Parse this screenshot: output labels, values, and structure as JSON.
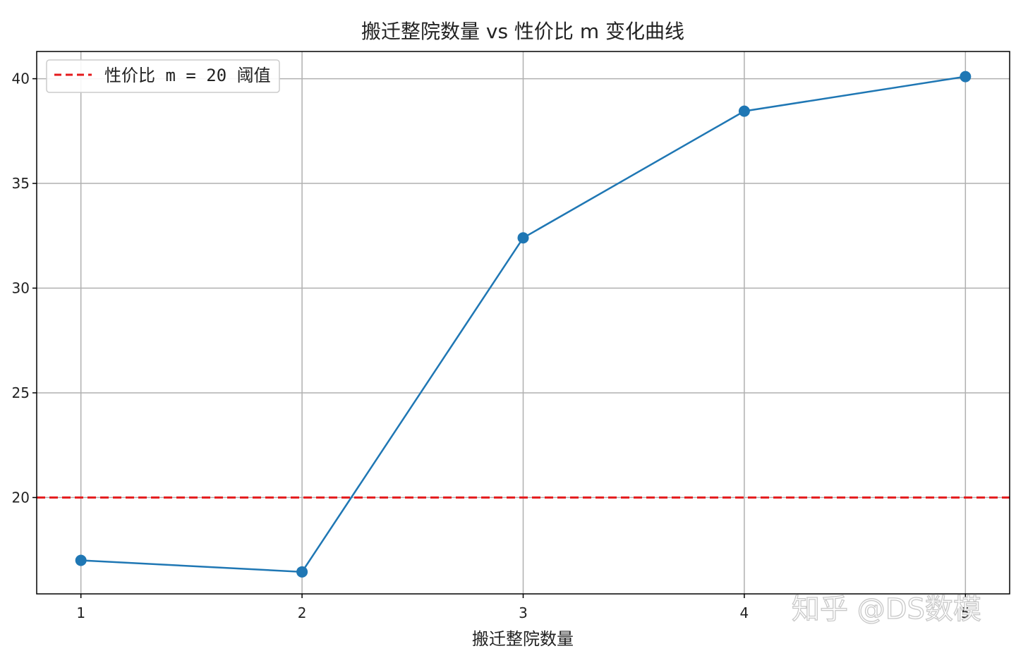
{
  "chart_data": {
    "type": "line",
    "title": "搬迁整院数量 vs 性价比 m 变化曲线",
    "xlabel": "搬迁整院数量",
    "ylabel": "",
    "x": [
      1,
      2,
      3,
      4,
      5
    ],
    "x_ticks": [
      "1",
      "2",
      "3",
      "4",
      "5"
    ],
    "y_ticks": [
      "20",
      "25",
      "30",
      "35",
      "40"
    ],
    "xlim": [
      0.8,
      5.2
    ],
    "ylim": [
      15.4,
      41.3
    ],
    "grid": true,
    "series": [
      {
        "values": [
          17.0,
          16.45,
          32.4,
          38.45,
          40.1
        ],
        "color": "#1f77b4",
        "marker": "circle"
      }
    ],
    "threshold": {
      "y": 20,
      "label": "性价比 m = 20 阈值",
      "color": "#e41a1c",
      "style": "dashed"
    },
    "legend_position": "top-left"
  },
  "watermark": "知乎 @DS数模"
}
